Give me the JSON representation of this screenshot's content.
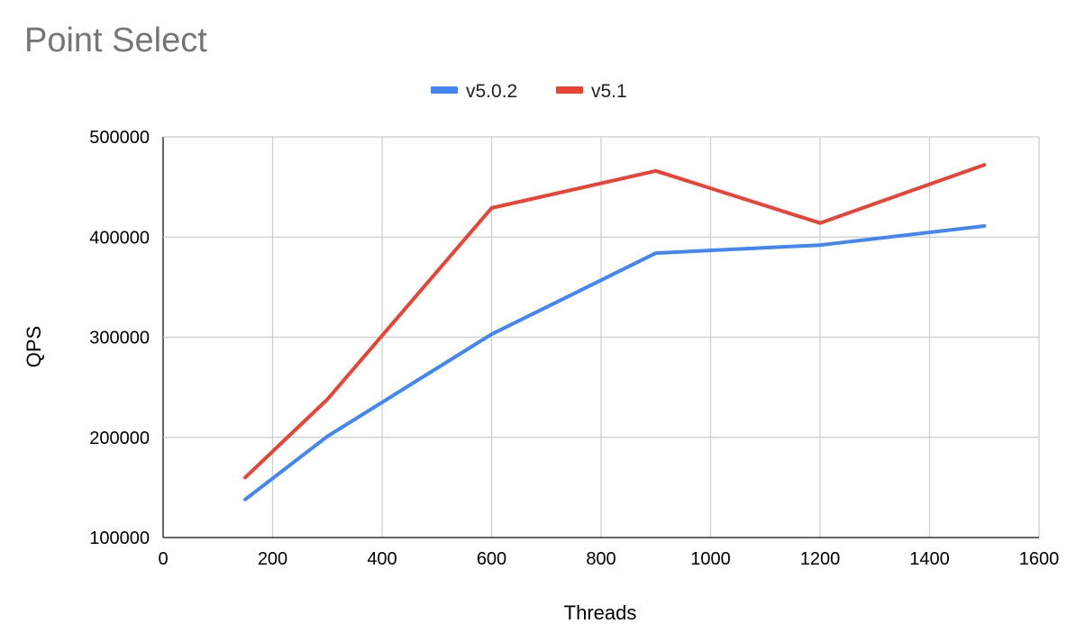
{
  "chart_data": {
    "type": "line",
    "title": "Point Select",
    "xlabel": "Threads",
    "ylabel": "QPS",
    "xlim": [
      0,
      1600
    ],
    "ylim": [
      100000,
      500000
    ],
    "x_ticks": [
      "0",
      "200",
      "400",
      "600",
      "800",
      "1000",
      "1200",
      "1400",
      "1600"
    ],
    "y_ticks": [
      "100000",
      "200000",
      "300000",
      "400000",
      "500000"
    ],
    "grid": true,
    "legend_position": "top",
    "x": [
      150,
      300,
      600,
      900,
      1200,
      1500
    ],
    "series": [
      {
        "name": "v5.0.2",
        "color": "#4285f4",
        "values": [
          138000,
          201000,
          303000,
          384000,
          392000,
          411000
        ]
      },
      {
        "name": "v5.1",
        "color": "#ea4335",
        "values": [
          160000,
          238000,
          429000,
          466000,
          414000,
          472000
        ]
      }
    ]
  }
}
